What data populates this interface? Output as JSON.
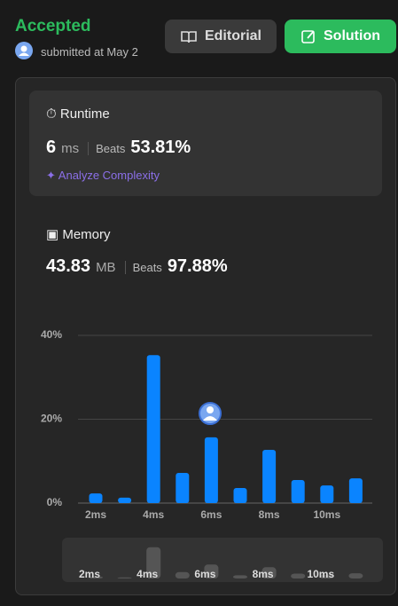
{
  "header": {
    "status": "Accepted",
    "submitted": "submitted at May 2",
    "editorial": "Editorial",
    "solution": "Solution"
  },
  "runtime": {
    "title": "Runtime",
    "value": "6",
    "unit": "ms",
    "beats_label": "Beats",
    "beats": "53.81%",
    "analyze": "Analyze Complexity"
  },
  "memory": {
    "title": "Memory",
    "value": "43.83",
    "unit": "MB",
    "beats_label": "Beats",
    "beats": "97.88%"
  },
  "chart_data": {
    "type": "bar",
    "categories": [
      "2ms",
      null,
      "4ms",
      null,
      "6ms",
      null,
      "8ms",
      null,
      "10ms",
      null
    ],
    "values": [
      2.3,
      1.3,
      35.3,
      7.2,
      15.7,
      3.6,
      12.7,
      5.5,
      4.2,
      5.9
    ],
    "color": "#0a84ff",
    "ylim": [
      0,
      40
    ],
    "yticks": [
      {
        "value": 0,
        "label": "0%"
      },
      {
        "value": 20,
        "label": "20%"
      },
      {
        "value": 40,
        "label": "40%"
      }
    ],
    "grid": true
  }
}
